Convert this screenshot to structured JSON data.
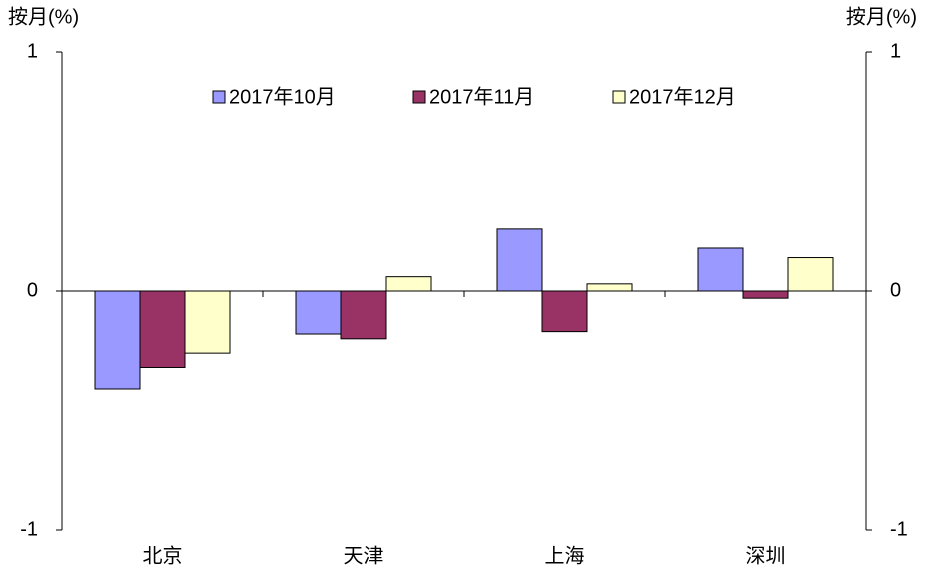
{
  "chart_data": {
    "type": "bar",
    "y_label": "按月(%)",
    "y2_label": "按月(%)",
    "categories": [
      "北京",
      "天津",
      "上海",
      "深圳"
    ],
    "series": [
      {
        "name": "2017年10月",
        "color": "#9999ff",
        "values": [
          -0.41,
          -0.18,
          0.26,
          0.18
        ]
      },
      {
        "name": "2017年11月",
        "color": "#993366",
        "values": [
          -0.32,
          -0.2,
          -0.17,
          -0.03
        ]
      },
      {
        "name": "2017年12月",
        "color": "#ffffcc",
        "values": [
          -0.26,
          0.06,
          0.03,
          0.14
        ]
      }
    ],
    "ylim": [
      -1,
      1
    ],
    "yticks": [
      -1,
      0,
      1
    ],
    "y2lim": [
      -1,
      1
    ],
    "y2ticks": [
      -1,
      0,
      1
    ],
    "legend": "top"
  }
}
